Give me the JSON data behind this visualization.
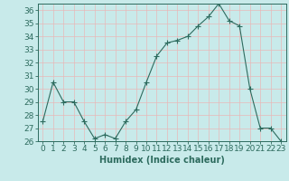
{
  "x": [
    0,
    1,
    2,
    3,
    4,
    5,
    6,
    7,
    8,
    9,
    10,
    11,
    12,
    13,
    14,
    15,
    16,
    17,
    18,
    19,
    20,
    21,
    22,
    23
  ],
  "y": [
    27.5,
    30.5,
    29.0,
    29.0,
    27.5,
    26.2,
    26.5,
    26.2,
    27.5,
    28.4,
    30.5,
    32.5,
    33.5,
    33.7,
    34.0,
    34.8,
    35.5,
    36.5,
    35.2,
    34.8,
    30.0,
    27.0,
    27.0,
    26.0
  ],
  "line_color": "#2d6b5e",
  "marker": "+",
  "marker_size": 4,
  "bg_color": "#c8eaea",
  "grid_color": "#e8b8b8",
  "xlabel": "Humidex (Indice chaleur)",
  "xlim": [
    -0.5,
    23.5
  ],
  "ylim": [
    26,
    36.5
  ],
  "yticks": [
    26,
    27,
    28,
    29,
    30,
    31,
    32,
    33,
    34,
    35,
    36
  ],
  "xticks": [
    0,
    1,
    2,
    3,
    4,
    5,
    6,
    7,
    8,
    9,
    10,
    11,
    12,
    13,
    14,
    15,
    16,
    17,
    18,
    19,
    20,
    21,
    22,
    23
  ],
  "label_fontsize": 7,
  "tick_fontsize": 6.5
}
